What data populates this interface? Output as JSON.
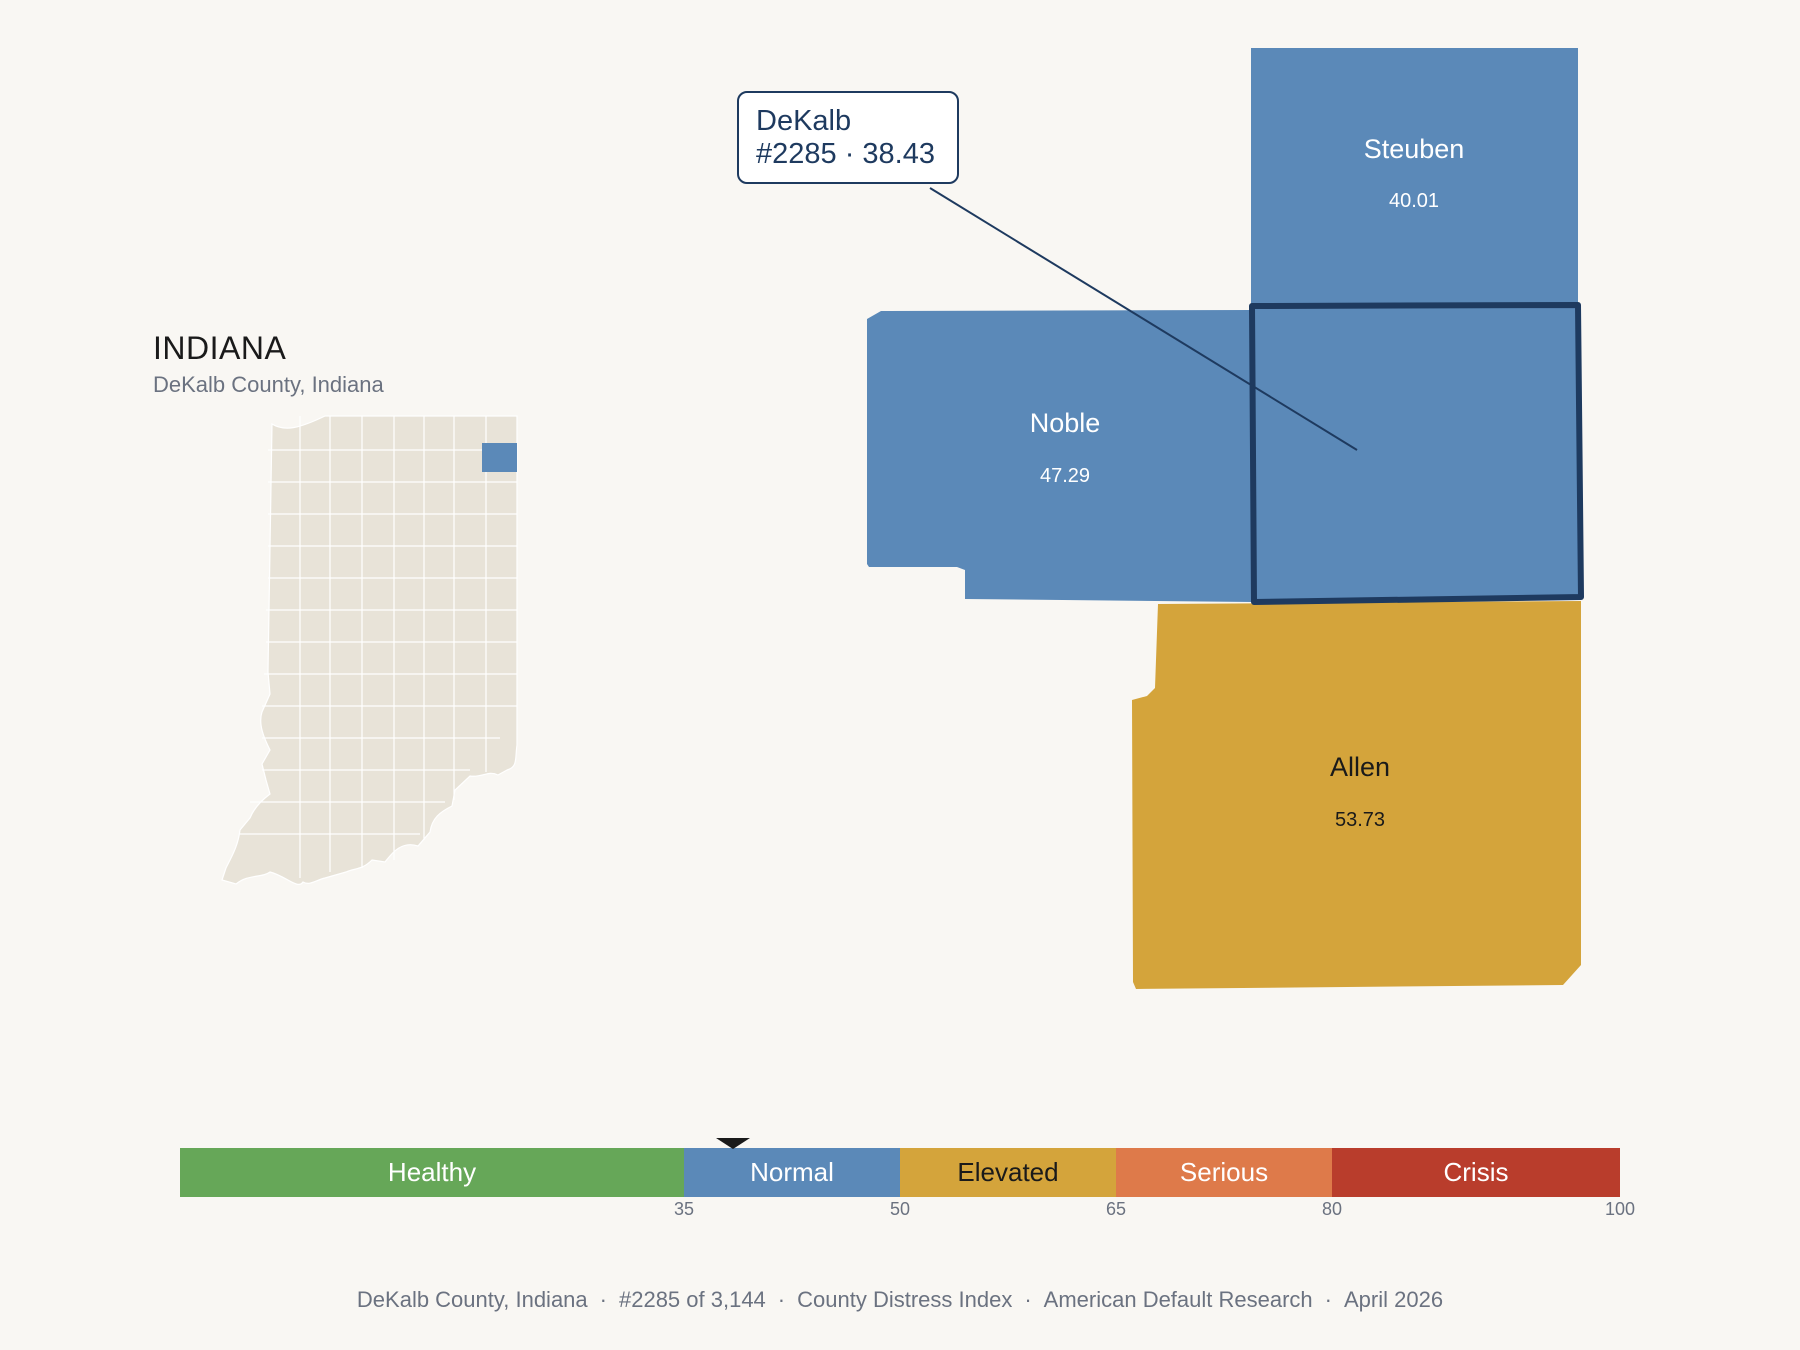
{
  "state": {
    "title": "INDIANA",
    "subtitle": "DeKalb County, Indiana"
  },
  "callout": {
    "county": "DeKalb",
    "rank_value": "#2285 · 38.43"
  },
  "counties": [
    {
      "name": "Steuben",
      "value": "40.01",
      "fill": "#5b89b8"
    },
    {
      "name": "Noble",
      "value": "47.29",
      "fill": "#5b89b8"
    },
    {
      "name": "Allen",
      "value": "53.73",
      "fill": "#d4a43b"
    },
    {
      "name": "DeKalb",
      "value": "38.43",
      "fill": "#5b89b8",
      "highlighted": true
    }
  ],
  "scale": {
    "segments": [
      {
        "label": "Healthy",
        "from": 0,
        "to": 35,
        "color": "#66a758"
      },
      {
        "label": "Normal",
        "from": 35,
        "to": 50,
        "color": "#5b89b8"
      },
      {
        "label": "Elevated",
        "from": 50,
        "to": 65,
        "color": "#d4a43b"
      },
      {
        "label": "Serious",
        "from": 65,
        "to": 80,
        "color": "#de7a4a"
      },
      {
        "label": "Crisis",
        "from": 80,
        "to": 100,
        "color": "#b93d2c"
      }
    ],
    "ticks": [
      "35",
      "50",
      "65",
      "80",
      "100"
    ],
    "marker_value": 38.43
  },
  "footer": {
    "items": [
      "DeKalb County, Indiana",
      "#2285 of 3,144",
      "County Distress Index",
      "American Default Research",
      "April 2026"
    ],
    "separator": "·"
  },
  "colors": {
    "background": "#f9f7f3",
    "inset_fill": "#e8e3d8",
    "highlight_stroke": "#1e3a5f",
    "leader_line": "#1e3a5f"
  }
}
